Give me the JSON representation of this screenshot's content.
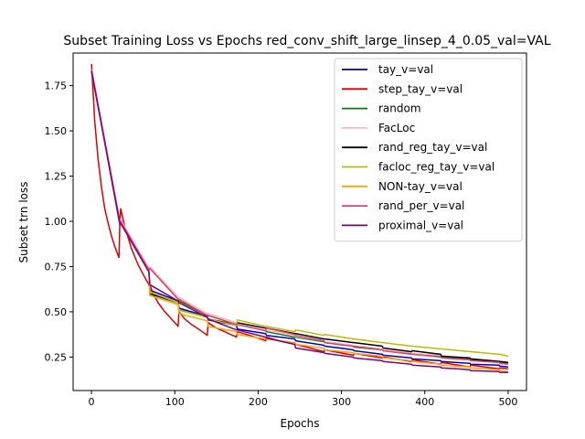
{
  "chart_data": {
    "type": "line",
    "title": "Subset Training Loss vs Epochs red_conv_shift_large_linsep_4_0.05_val=VAL",
    "xlabel": "Epochs",
    "ylabel": "Subset trn loss",
    "xlim": [
      -22,
      522
    ],
    "ylim": [
      0.065,
      1.93
    ],
    "xticks": [
      0,
      100,
      200,
      300,
      400,
      500
    ],
    "yticks": [
      0.25,
      0.5,
      0.75,
      1.0,
      1.25,
      1.5,
      1.75
    ],
    "xtick_labels": [
      "0",
      "100",
      "200",
      "300",
      "400",
      "500"
    ],
    "ytick_labels": [
      "0.25",
      "0.50",
      "0.75",
      "1.00",
      "1.25",
      "1.50",
      "1.75"
    ],
    "grid": false,
    "legend_position": "top-right",
    "series": [
      {
        "name": "tay_v=val",
        "color": "#0000cc",
        "x": [
          0,
          34,
          35,
          69,
          70,
          104,
          105,
          139,
          140,
          174,
          175,
          209,
          210,
          244,
          245,
          279,
          280,
          314,
          315,
          349,
          350,
          384,
          385,
          419,
          420,
          454,
          455,
          489,
          490,
          500
        ],
        "y": [
          1.84,
          0.98,
          0.99,
          0.72,
          0.62,
          0.56,
          0.52,
          0.475,
          0.455,
          0.425,
          0.405,
          0.38,
          0.37,
          0.35,
          0.34,
          0.315,
          0.31,
          0.29,
          0.285,
          0.265,
          0.26,
          0.245,
          0.24,
          0.23,
          0.225,
          0.215,
          0.21,
          0.205,
          0.2,
          0.195
        ]
      },
      {
        "name": "step_tay_v=val",
        "color": "#dd0000",
        "x": [
          0,
          4,
          8,
          12,
          16,
          20,
          24,
          28,
          33,
          34,
          35,
          36,
          40,
          48,
          56,
          64,
          69,
          70,
          74,
          80,
          88,
          96,
          104,
          105,
          112,
          120,
          130,
          139,
          140,
          150,
          160,
          174,
          175,
          190,
          209,
          210,
          225,
          244,
          245,
          279,
          280,
          314,
          315,
          349,
          350,
          384,
          385,
          419,
          420,
          454,
          455,
          489,
          490,
          500
        ],
        "y": [
          1.87,
          1.55,
          1.34,
          1.19,
          1.07,
          0.99,
          0.92,
          0.86,
          0.8,
          0.98,
          1.07,
          1.05,
          0.97,
          0.85,
          0.76,
          0.69,
          0.65,
          0.65,
          0.6,
          0.55,
          0.5,
          0.46,
          0.42,
          0.5,
          0.46,
          0.43,
          0.4,
          0.37,
          0.44,
          0.41,
          0.39,
          0.36,
          0.39,
          0.37,
          0.34,
          0.36,
          0.34,
          0.32,
          0.32,
          0.28,
          0.29,
          0.26,
          0.27,
          0.245,
          0.25,
          0.225,
          0.235,
          0.21,
          0.22,
          0.195,
          0.205,
          0.185,
          0.19,
          0.185
        ]
      },
      {
        "name": "random",
        "color": "#008000",
        "x": [
          0,
          34,
          35,
          69,
          70,
          104,
          105,
          139,
          140,
          174,
          175,
          209,
          210,
          244,
          245,
          279,
          280,
          314,
          315,
          349,
          350,
          384,
          385,
          419,
          420,
          454,
          455,
          489,
          490,
          500
        ],
        "y": [
          1.83,
          0.99,
          1.0,
          0.74,
          0.74,
          0.57,
          0.56,
          0.48,
          0.48,
          0.43,
          0.43,
          0.395,
          0.39,
          0.36,
          0.36,
          0.335,
          0.33,
          0.31,
          0.305,
          0.29,
          0.285,
          0.27,
          0.265,
          0.255,
          0.25,
          0.24,
          0.235,
          0.225,
          0.22,
          0.215
        ]
      },
      {
        "name": "FacLoc",
        "color": "#ffb6c1",
        "x": [
          0,
          34,
          35,
          69,
          70,
          104,
          105,
          139,
          140,
          174,
          175,
          209,
          210,
          244,
          245,
          279,
          280,
          314,
          315,
          349,
          350,
          384,
          385,
          419,
          420,
          454,
          455,
          489,
          490,
          500
        ],
        "y": [
          1.84,
          1.0,
          1.01,
          0.74,
          0.75,
          0.58,
          0.58,
          0.49,
          0.49,
          0.44,
          0.44,
          0.4,
          0.4,
          0.37,
          0.365,
          0.34,
          0.335,
          0.315,
          0.31,
          0.295,
          0.29,
          0.275,
          0.27,
          0.26,
          0.255,
          0.245,
          0.24,
          0.23,
          0.225,
          0.22
        ]
      },
      {
        "name": "rand_reg_tay_v=val",
        "color": "#000000",
        "x": [
          0,
          34,
          35,
          69,
          70,
          104,
          105,
          139,
          140,
          174,
          175,
          209,
          210,
          244,
          245,
          279,
          280,
          314,
          315,
          349,
          350,
          384,
          385,
          419,
          420,
          454,
          455,
          489,
          490,
          500
        ],
        "y": [
          1.83,
          0.99,
          0.99,
          0.72,
          0.6,
          0.55,
          0.51,
          0.47,
          0.46,
          0.43,
          0.44,
          0.41,
          0.41,
          0.38,
          0.38,
          0.35,
          0.35,
          0.33,
          0.33,
          0.31,
          0.3,
          0.28,
          0.285,
          0.265,
          0.255,
          0.245,
          0.24,
          0.225,
          0.225,
          0.22
        ]
      },
      {
        "name": "facloc_reg_tay_v=val",
        "color": "#bbbb00",
        "x": [
          0,
          34,
          35,
          69,
          70,
          104,
          105,
          139,
          140,
          174,
          175,
          209,
          210,
          244,
          245,
          279,
          280,
          314,
          315,
          349,
          350,
          384,
          385,
          419,
          420,
          454,
          455,
          489,
          490,
          500
        ],
        "y": [
          1.83,
          0.99,
          0.99,
          0.72,
          0.61,
          0.55,
          0.51,
          0.47,
          0.46,
          0.425,
          0.455,
          0.42,
          0.42,
          0.39,
          0.4,
          0.37,
          0.375,
          0.35,
          0.35,
          0.33,
          0.33,
          0.31,
          0.31,
          0.295,
          0.295,
          0.28,
          0.28,
          0.265,
          0.265,
          0.255
        ]
      },
      {
        "name": "NON-tay_v=val",
        "color": "#ffa500",
        "x": [
          0,
          34,
          35,
          69,
          70,
          104,
          105,
          139,
          140,
          174,
          175,
          209,
          210,
          244,
          245,
          279,
          280,
          314,
          315,
          349,
          350,
          384,
          385,
          419,
          420,
          454,
          455,
          489,
          490,
          500
        ],
        "y": [
          1.83,
          0.99,
          0.99,
          0.72,
          0.59,
          0.54,
          0.49,
          0.45,
          0.42,
          0.39,
          0.375,
          0.35,
          0.35,
          0.33,
          0.32,
          0.3,
          0.29,
          0.275,
          0.27,
          0.255,
          0.245,
          0.23,
          0.225,
          0.21,
          0.205,
          0.195,
          0.19,
          0.18,
          0.175,
          0.17
        ]
      },
      {
        "name": "rand_per_v=val",
        "color": "#dd4477",
        "x": [
          0,
          34,
          35,
          69,
          70,
          104,
          105,
          139,
          140,
          174,
          175,
          209,
          210,
          244,
          245,
          279,
          280,
          314,
          315,
          349,
          350,
          384,
          385,
          419,
          420,
          454,
          455,
          489,
          490,
          500
        ],
        "y": [
          1.84,
          1.0,
          1.0,
          0.73,
          0.74,
          0.57,
          0.57,
          0.48,
          0.48,
          0.43,
          0.43,
          0.395,
          0.41,
          0.375,
          0.37,
          0.34,
          0.33,
          0.31,
          0.31,
          0.29,
          0.285,
          0.265,
          0.265,
          0.25,
          0.245,
          0.235,
          0.23,
          0.22,
          0.215,
          0.21
        ]
      },
      {
        "name": "proximal_v=val",
        "color": "#800080",
        "x": [
          0,
          34,
          35,
          69,
          70,
          104,
          105,
          139,
          140,
          174,
          175,
          209,
          210,
          244,
          245,
          279,
          280,
          314,
          315,
          349,
          350,
          384,
          385,
          419,
          420,
          454,
          455,
          489,
          490,
          500
        ],
        "y": [
          1.83,
          0.99,
          0.99,
          0.72,
          0.65,
          0.56,
          0.55,
          0.47,
          0.46,
          0.4,
          0.4,
          0.36,
          0.355,
          0.32,
          0.3,
          0.275,
          0.27,
          0.25,
          0.245,
          0.23,
          0.225,
          0.21,
          0.205,
          0.195,
          0.19,
          0.18,
          0.175,
          0.17,
          0.165,
          0.165
        ]
      }
    ]
  }
}
